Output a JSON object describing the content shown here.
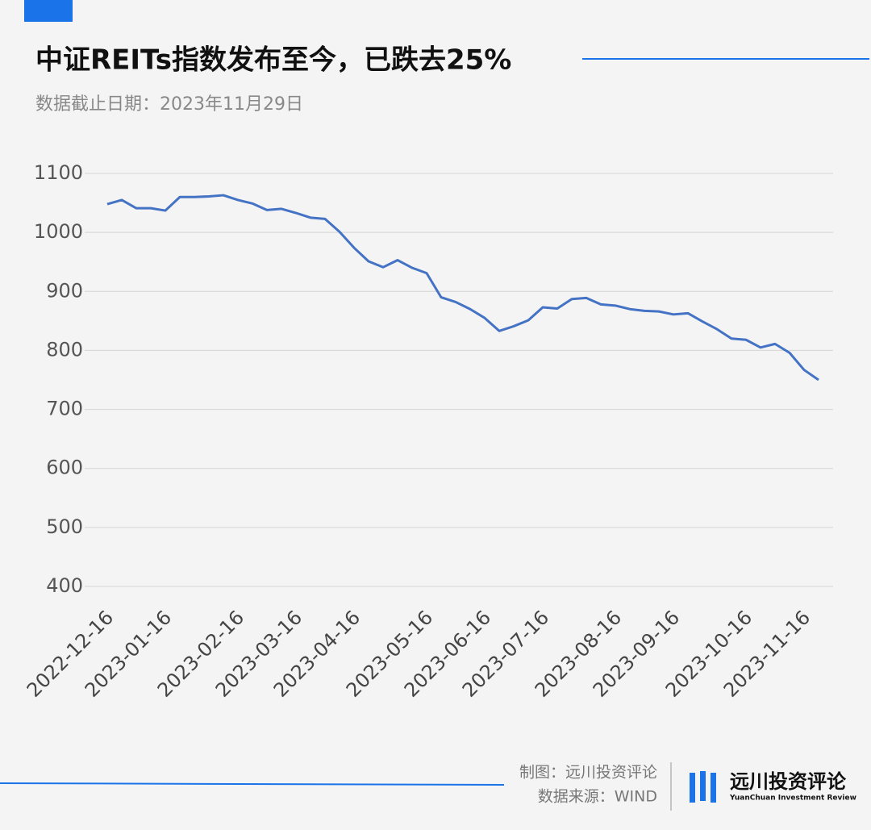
{
  "chart_data": {
    "type": "line",
    "title": "中证REITs指数发布至今，已跌去25%",
    "subtitle": "数据截止日期：2023年11月29日",
    "categories": [
      "2022-12-16",
      null,
      null,
      null,
      "2023-01-16",
      null,
      null,
      null,
      null,
      "2023-02-16",
      null,
      null,
      null,
      "2023-03-16",
      null,
      null,
      null,
      "2023-04-16",
      null,
      null,
      null,
      null,
      "2023-05-16",
      null,
      null,
      null,
      "2023-06-16",
      null,
      null,
      null,
      "2023-07-16",
      null,
      null,
      null,
      null,
      "2023-08-16",
      null,
      null,
      null,
      "2023-09-16",
      null,
      null,
      null,
      null,
      "2023-10-16",
      null,
      null,
      null,
      "2023-11-16",
      null
    ],
    "series": [
      {
        "name": "中证REITs指数",
        "color": "#4472c4",
        "values": [
          1048,
          1055,
          1041,
          1041,
          1037,
          1060,
          1060,
          1061,
          1063,
          1055,
          1049,
          1038,
          1040,
          1033,
          1025,
          1023,
          1001,
          974,
          951,
          941,
          953,
          940,
          931,
          890,
          882,
          870,
          855,
          833,
          841,
          851,
          873,
          871,
          887,
          889,
          878,
          876,
          870,
          867,
          866,
          861,
          863,
          849,
          836,
          820,
          818,
          805,
          811,
          796,
          767,
          750
        ]
      }
    ],
    "ylim": [
      400,
      1100
    ],
    "yticks": [
      400,
      500,
      600,
      700,
      800,
      900,
      1000,
      1100
    ],
    "grid": true
  },
  "footer": {
    "credit": "制图：远川投资评论",
    "source": "数据来源：WIND",
    "brand": "远川投资评论",
    "brand_en": "YuanChuan Investment Review"
  }
}
